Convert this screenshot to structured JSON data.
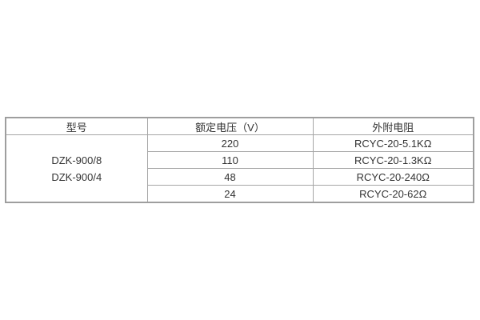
{
  "table": {
    "headers": [
      "型号",
      "额定电压（V）",
      "外附电阻"
    ],
    "models": [
      "DZK-900/8",
      "DZK-900/4"
    ],
    "rows": [
      {
        "voltage": "220",
        "resistor": "RCYC-20-5.1KΩ"
      },
      {
        "voltage": "110",
        "resistor": "RCYC-20-1.3KΩ"
      },
      {
        "voltage": "48",
        "resistor": "RCYC-20-240Ω"
      },
      {
        "voltage": "24",
        "resistor": "RCYC-20-62Ω"
      }
    ],
    "colors": {
      "border": "#a6a6a6",
      "outer_border": "#9e9e9e",
      "text": "#333333",
      "background": "#ffffff"
    }
  }
}
